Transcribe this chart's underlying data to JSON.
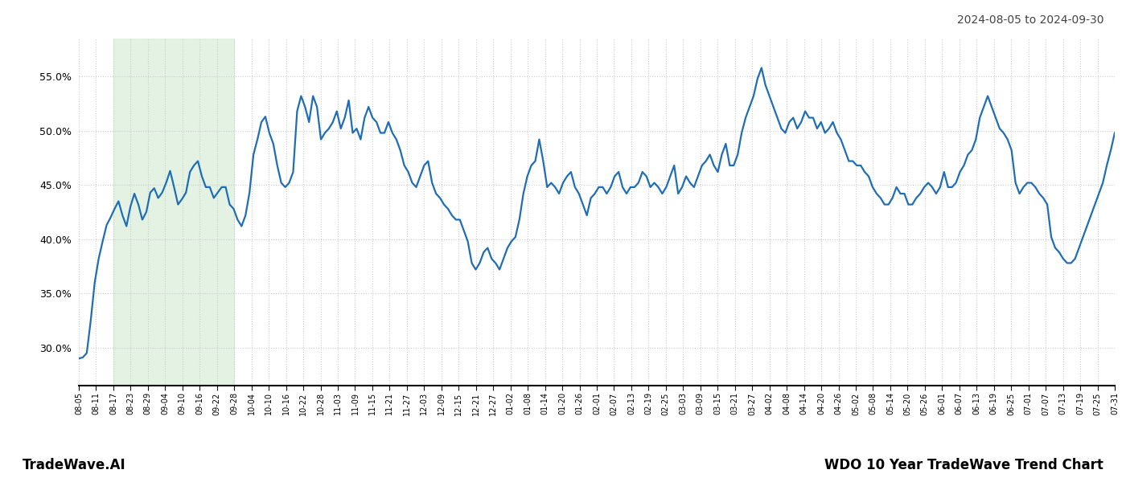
{
  "title_top_right": "2024-08-05 to 2024-09-30",
  "title_bottom_left": "TradeWave.AI",
  "title_bottom_right": "WDO 10 Year TradeWave Trend Chart",
  "y_ticks": [
    0.3,
    0.35,
    0.4,
    0.45,
    0.5,
    0.55
  ],
  "ylim": [
    0.265,
    0.585
  ],
  "line_color": "#1f6eb5",
  "line_width": 1.6,
  "shade_color": "#d4ecd4",
  "shade_alpha": 0.65,
  "grid_color": "#cccccc",
  "grid_style": ":",
  "background_color": "#ffffff",
  "x_labels": [
    "08-05",
    "08-11",
    "08-17",
    "08-23",
    "08-29",
    "09-04",
    "09-10",
    "09-16",
    "09-22",
    "09-28",
    "10-04",
    "10-10",
    "10-16",
    "10-22",
    "10-28",
    "11-03",
    "11-09",
    "11-15",
    "11-21",
    "11-27",
    "12-03",
    "12-09",
    "12-15",
    "12-21",
    "12-27",
    "01-02",
    "01-08",
    "01-14",
    "01-20",
    "01-26",
    "02-01",
    "02-07",
    "02-13",
    "02-19",
    "02-25",
    "03-03",
    "03-09",
    "03-15",
    "03-21",
    "03-27",
    "04-02",
    "04-08",
    "04-14",
    "04-20",
    "04-26",
    "05-02",
    "05-08",
    "05-14",
    "05-20",
    "05-26",
    "06-01",
    "06-07",
    "06-13",
    "06-19",
    "06-25",
    "07-01",
    "07-07",
    "07-13",
    "07-19",
    "07-25",
    "07-31"
  ],
  "shade_start_label": "08-17",
  "shade_end_label": "09-28",
  "y_values": [
    0.29,
    0.291,
    0.295,
    0.325,
    0.36,
    0.382,
    0.398,
    0.413,
    0.42,
    0.428,
    0.435,
    0.422,
    0.412,
    0.43,
    0.442,
    0.432,
    0.418,
    0.425,
    0.443,
    0.447,
    0.438,
    0.443,
    0.452,
    0.463,
    0.448,
    0.432,
    0.437,
    0.443,
    0.462,
    0.468,
    0.472,
    0.458,
    0.448,
    0.448,
    0.438,
    0.443,
    0.448,
    0.448,
    0.432,
    0.428,
    0.418,
    0.412,
    0.422,
    0.443,
    0.478,
    0.492,
    0.508,
    0.513,
    0.498,
    0.488,
    0.468,
    0.452,
    0.448,
    0.452,
    0.462,
    0.518,
    0.532,
    0.522,
    0.508,
    0.532,
    0.522,
    0.492,
    0.498,
    0.502,
    0.508,
    0.518,
    0.502,
    0.512,
    0.528,
    0.498,
    0.502,
    0.492,
    0.512,
    0.522,
    0.512,
    0.508,
    0.498,
    0.498,
    0.508,
    0.498,
    0.492,
    0.482,
    0.468,
    0.462,
    0.452,
    0.448,
    0.458,
    0.468,
    0.472,
    0.452,
    0.442,
    0.438,
    0.432,
    0.428,
    0.422,
    0.418,
    0.418,
    0.408,
    0.398,
    0.378,
    0.372,
    0.378,
    0.388,
    0.392,
    0.382,
    0.378,
    0.372,
    0.382,
    0.392,
    0.398,
    0.402,
    0.418,
    0.442,
    0.458,
    0.468,
    0.472,
    0.492,
    0.472,
    0.448,
    0.452,
    0.448,
    0.442,
    0.452,
    0.458,
    0.462,
    0.448,
    0.442,
    0.432,
    0.422,
    0.438,
    0.442,
    0.448,
    0.448,
    0.442,
    0.448,
    0.458,
    0.462,
    0.448,
    0.442,
    0.448,
    0.448,
    0.452,
    0.462,
    0.458,
    0.448,
    0.452,
    0.448,
    0.442,
    0.448,
    0.458,
    0.468,
    0.442,
    0.448,
    0.458,
    0.452,
    0.448,
    0.458,
    0.468,
    0.472,
    0.478,
    0.468,
    0.462,
    0.478,
    0.488,
    0.468,
    0.468,
    0.478,
    0.498,
    0.512,
    0.522,
    0.532,
    0.548,
    0.558,
    0.542,
    0.532,
    0.522,
    0.512,
    0.502,
    0.498,
    0.508,
    0.512,
    0.502,
    0.508,
    0.518,
    0.512,
    0.512,
    0.502,
    0.508,
    0.498,
    0.502,
    0.508,
    0.498,
    0.492,
    0.482,
    0.472,
    0.472,
    0.468,
    0.468,
    0.462,
    0.458,
    0.448,
    0.442,
    0.438,
    0.432,
    0.432,
    0.438,
    0.448,
    0.442,
    0.442,
    0.432,
    0.432,
    0.438,
    0.442,
    0.448,
    0.452,
    0.448,
    0.442,
    0.448,
    0.462,
    0.448,
    0.448,
    0.452,
    0.462,
    0.468,
    0.478,
    0.482,
    0.492,
    0.512,
    0.522,
    0.532,
    0.522,
    0.512,
    0.502,
    0.498,
    0.492,
    0.482,
    0.452,
    0.442,
    0.448,
    0.452,
    0.452,
    0.448,
    0.442,
    0.438,
    0.432,
    0.402,
    0.392,
    0.388,
    0.382,
    0.378,
    0.378,
    0.382,
    0.392,
    0.402,
    0.412,
    0.422,
    0.432,
    0.442,
    0.452,
    0.468,
    0.482,
    0.498
  ]
}
